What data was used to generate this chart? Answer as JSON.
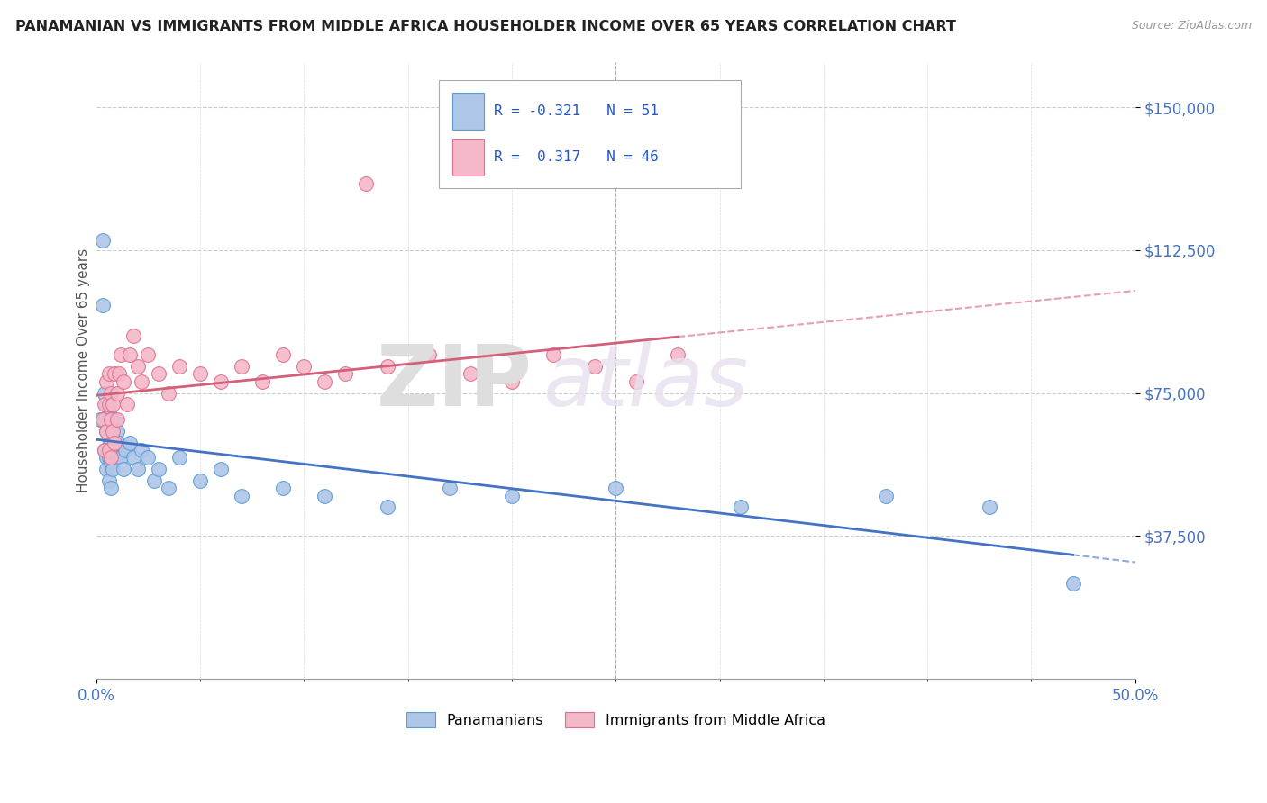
{
  "title": "PANAMANIAN VS IMMIGRANTS FROM MIDDLE AFRICA HOUSEHOLDER INCOME OVER 65 YEARS CORRELATION CHART",
  "source_text": "Source: ZipAtlas.com",
  "ylabel": "Householder Income Over 65 years",
  "xlim": [
    0.0,
    0.5
  ],
  "ylim": [
    0,
    162000
  ],
  "ytick_values": [
    37500,
    75000,
    112500,
    150000
  ],
  "ytick_labels": [
    "$37,500",
    "$75,000",
    "$112,500",
    "$150,000"
  ],
  "R_blue": -0.321,
  "N_blue": 51,
  "R_pink": 0.317,
  "N_pink": 46,
  "blue_fill": "#aec6e8",
  "blue_edge": "#5b9bd5",
  "pink_fill": "#f4b8c8",
  "pink_edge": "#e07090",
  "blue_line": "#4472c4",
  "pink_line": "#d45f7a",
  "legend_blue": "Panamanians",
  "legend_pink": "Immigrants from Middle Africa",
  "bg": "#ffffff",
  "blue_x": [
    0.002,
    0.003,
    0.003,
    0.004,
    0.004,
    0.004,
    0.005,
    0.005,
    0.005,
    0.005,
    0.006,
    0.006,
    0.006,
    0.006,
    0.007,
    0.007,
    0.007,
    0.007,
    0.008,
    0.008,
    0.008,
    0.009,
    0.009,
    0.01,
    0.01,
    0.011,
    0.012,
    0.013,
    0.014,
    0.016,
    0.018,
    0.02,
    0.022,
    0.025,
    0.028,
    0.03,
    0.035,
    0.04,
    0.05,
    0.06,
    0.07,
    0.09,
    0.11,
    0.14,
    0.17,
    0.2,
    0.25,
    0.31,
    0.38,
    0.43,
    0.47
  ],
  "blue_y": [
    68000,
    115000,
    98000,
    75000,
    68000,
    60000,
    72000,
    65000,
    58000,
    55000,
    70000,
    63000,
    58000,
    52000,
    68000,
    62000,
    57000,
    50000,
    65000,
    60000,
    55000,
    68000,
    62000,
    65000,
    58000,
    62000,
    58000,
    55000,
    60000,
    62000,
    58000,
    55000,
    60000,
    58000,
    52000,
    55000,
    50000,
    58000,
    52000,
    55000,
    48000,
    50000,
    48000,
    45000,
    50000,
    48000,
    50000,
    45000,
    48000,
    45000,
    25000
  ],
  "pink_x": [
    0.003,
    0.004,
    0.004,
    0.005,
    0.005,
    0.006,
    0.006,
    0.006,
    0.007,
    0.007,
    0.007,
    0.008,
    0.008,
    0.009,
    0.009,
    0.01,
    0.01,
    0.011,
    0.012,
    0.013,
    0.015,
    0.016,
    0.018,
    0.02,
    0.022,
    0.025,
    0.03,
    0.035,
    0.04,
    0.05,
    0.06,
    0.07,
    0.08,
    0.09,
    0.1,
    0.11,
    0.12,
    0.14,
    0.16,
    0.18,
    0.2,
    0.22,
    0.24,
    0.26,
    0.28,
    0.13
  ],
  "pink_y": [
    68000,
    72000,
    60000,
    78000,
    65000,
    80000,
    72000,
    60000,
    75000,
    68000,
    58000,
    72000,
    65000,
    80000,
    62000,
    75000,
    68000,
    80000,
    85000,
    78000,
    72000,
    85000,
    90000,
    82000,
    78000,
    85000,
    80000,
    75000,
    82000,
    80000,
    78000,
    82000,
    78000,
    85000,
    82000,
    78000,
    80000,
    82000,
    85000,
    80000,
    78000,
    85000,
    82000,
    78000,
    85000,
    130000
  ]
}
